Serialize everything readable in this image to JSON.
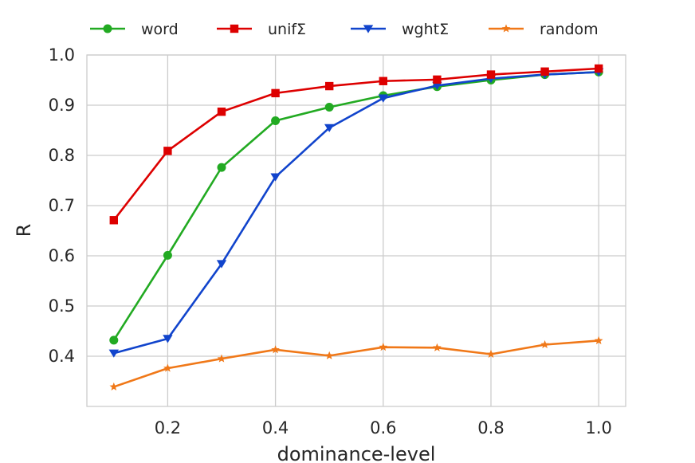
{
  "chart_data": {
    "type": "line",
    "title": "",
    "xlabel": "dominance-level",
    "ylabel": "R",
    "xlim": [
      0.05,
      1.05
    ],
    "ylim": [
      0.3,
      1.0
    ],
    "xticks": [
      "0.2",
      "0.4",
      "0.6",
      "0.8",
      "1.0"
    ],
    "yticks": [
      "0.4",
      "0.5",
      "0.6",
      "0.7",
      "0.8",
      "0.9",
      "1.0"
    ],
    "grid": true,
    "legend_position": "top",
    "x": [
      0.1,
      0.2,
      0.3,
      0.4,
      0.5,
      0.6,
      0.7,
      0.8,
      0.9,
      1.0
    ],
    "series": [
      {
        "name": "word",
        "color": "#22aa22",
        "marker": "circle",
        "values": [
          0.432,
          0.601,
          0.776,
          0.869,
          0.896,
          0.919,
          0.937,
          0.95,
          0.961,
          0.966
        ]
      },
      {
        "name": "unifΣ",
        "color": "#dd0000",
        "marker": "square",
        "values": [
          0.671,
          0.809,
          0.887,
          0.924,
          0.938,
          0.948,
          0.951,
          0.961,
          0.967,
          0.973
        ]
      },
      {
        "name": "wghtΣ",
        "color": "#1144cc",
        "marker": "triangle-down",
        "values": [
          0.406,
          0.435,
          0.584,
          0.757,
          0.855,
          0.914,
          0.939,
          0.953,
          0.961,
          0.966
        ]
      },
      {
        "name": "random",
        "color": "#f07818",
        "marker": "star",
        "values": [
          0.339,
          0.376,
          0.395,
          0.413,
          0.401,
          0.418,
          0.417,
          0.404,
          0.423,
          0.431
        ]
      }
    ]
  }
}
